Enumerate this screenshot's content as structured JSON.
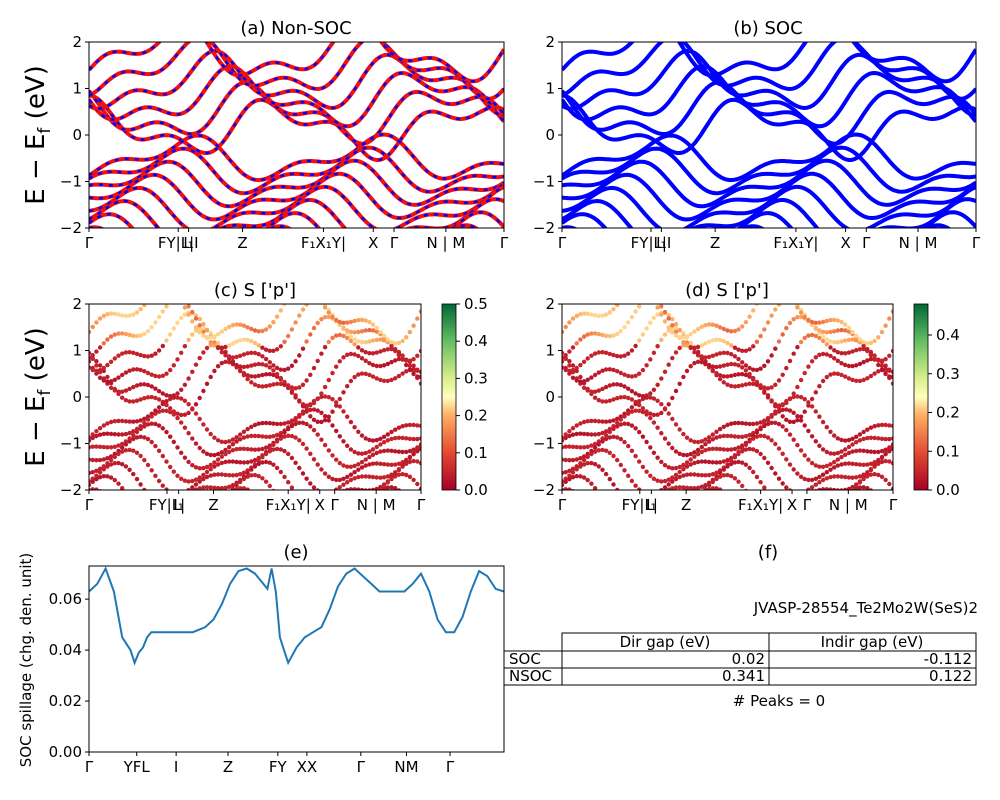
{
  "figure_id": "JVASP-28554_Te2Mo2W(SeS)2",
  "peaks_text": "# Peaks = 0",
  "colors": {
    "red": "#ee1111",
    "blue": "#0000ff",
    "line": "#1f77b4"
  },
  "chart_data": [
    {
      "id": "a",
      "type": "line",
      "title": "(a) Non-SOC",
      "ylabel": "E − E_f (eV)",
      "ylim": [
        -2,
        2
      ],
      "yticks": [
        "2",
        "1",
        "0",
        "−1",
        "−2"
      ],
      "xticks": [
        "Γ",
        "FY|L|I",
        "I₁",
        "Z",
        "F₁X₁Y|",
        "X",
        "Γ",
        "N | M",
        "Γ"
      ],
      "series_colors": [
        "red",
        "blue"
      ]
    },
    {
      "id": "b",
      "type": "line",
      "title": "(b) SOC",
      "ylim": [
        -2,
        2
      ],
      "yticks": [
        "2",
        "1",
        "0",
        "−1",
        "−2"
      ],
      "xticks": [
        "Γ",
        "FY|L|I",
        "I₁",
        "Z",
        "F₁X₁Y|",
        "X",
        "Γ",
        "N | M",
        "Γ"
      ],
      "series_colors": [
        "blue"
      ]
    },
    {
      "id": "c",
      "type": "scatter",
      "title": "(c)  S ['p']",
      "ylabel": "E − E_f (eV)",
      "ylim": [
        -2,
        2
      ],
      "yticks": [
        "2",
        "1",
        "0",
        "−1",
        "−2"
      ],
      "xticks": [
        "Γ",
        "FY|L|",
        "I₁",
        "Z",
        "F₁X₁Y|",
        "X",
        "Γ",
        "N | M",
        "Γ"
      ],
      "colorbar": {
        "range": [
          0,
          0.5
        ],
        "ticks": [
          "0.5",
          "0.4",
          "0.3",
          "0.2",
          "0.1",
          "0.0"
        ]
      }
    },
    {
      "id": "d",
      "type": "scatter",
      "title": "(d) S ['p']",
      "ylim": [
        -2,
        2
      ],
      "yticks": [
        "2",
        "1",
        "0",
        "−1",
        "−2"
      ],
      "xticks": [
        "Γ",
        "FY|L|",
        "I₁",
        "Z",
        "F₁X₁Y|",
        "X",
        "Γ",
        "N | M",
        "Γ"
      ],
      "colorbar": {
        "range": [
          0,
          0.48
        ],
        "ticks": [
          "0.4",
          "0.3",
          "0.2",
          "0.1",
          "0.0"
        ]
      }
    },
    {
      "id": "e",
      "type": "line",
      "title": "(e)",
      "ylabel": "SOC spillage (chg. den. unit)",
      "ylim": [
        0,
        0.073
      ],
      "yticks": [
        "0.06",
        "0.04",
        "0.02",
        "0.00"
      ],
      "xticks": [
        "Γ",
        "YFL",
        "I",
        "Z",
        "FY",
        "XX",
        "Γ",
        "NM",
        "Γ"
      ],
      "series": [
        {
          "x": [
            0,
            0.02,
            0.04,
            0.06,
            0.08,
            0.1,
            0.11,
            0.12,
            0.13,
            0.14,
            0.15,
            0.16,
            0.18,
            0.2,
            0.22,
            0.25,
            0.28,
            0.3,
            0.32,
            0.34,
            0.36,
            0.38,
            0.4,
            0.42,
            0.43,
            0.44,
            0.45,
            0.46,
            0.47,
            0.48,
            0.5,
            0.52,
            0.54,
            0.56,
            0.58,
            0.6,
            0.62,
            0.64,
            0.66,
            0.68,
            0.7,
            0.72,
            0.74,
            0.76,
            0.78,
            0.8,
            0.82,
            0.84,
            0.86,
            0.88,
            0.9,
            0.92,
            0.94,
            0.96,
            0.98,
            1.0
          ],
          "y": [
            0.063,
            0.066,
            0.072,
            0.063,
            0.045,
            0.04,
            0.035,
            0.039,
            0.041,
            0.045,
            0.047,
            0.047,
            0.047,
            0.047,
            0.047,
            0.047,
            0.049,
            0.052,
            0.058,
            0.066,
            0.071,
            0.072,
            0.07,
            0.066,
            0.064,
            0.072,
            0.063,
            0.045,
            0.04,
            0.035,
            0.041,
            0.045,
            0.047,
            0.049,
            0.056,
            0.065,
            0.07,
            0.072,
            0.069,
            0.066,
            0.063,
            0.063,
            0.063,
            0.063,
            0.066,
            0.07,
            0.063,
            0.052,
            0.047,
            0.047,
            0.053,
            0.063,
            0.071,
            0.069,
            0.064,
            0.063
          ]
        }
      ]
    }
  ],
  "table": {
    "title": "(f)",
    "headers": [
      "",
      "Dir gap (eV)",
      "Indir gap (eV)"
    ],
    "rows": [
      {
        "label": "SOC",
        "dir": "0.02",
        "indir": "-0.112"
      },
      {
        "label": "NSOC",
        "dir": "0.341",
        "indir": "0.122"
      }
    ]
  }
}
